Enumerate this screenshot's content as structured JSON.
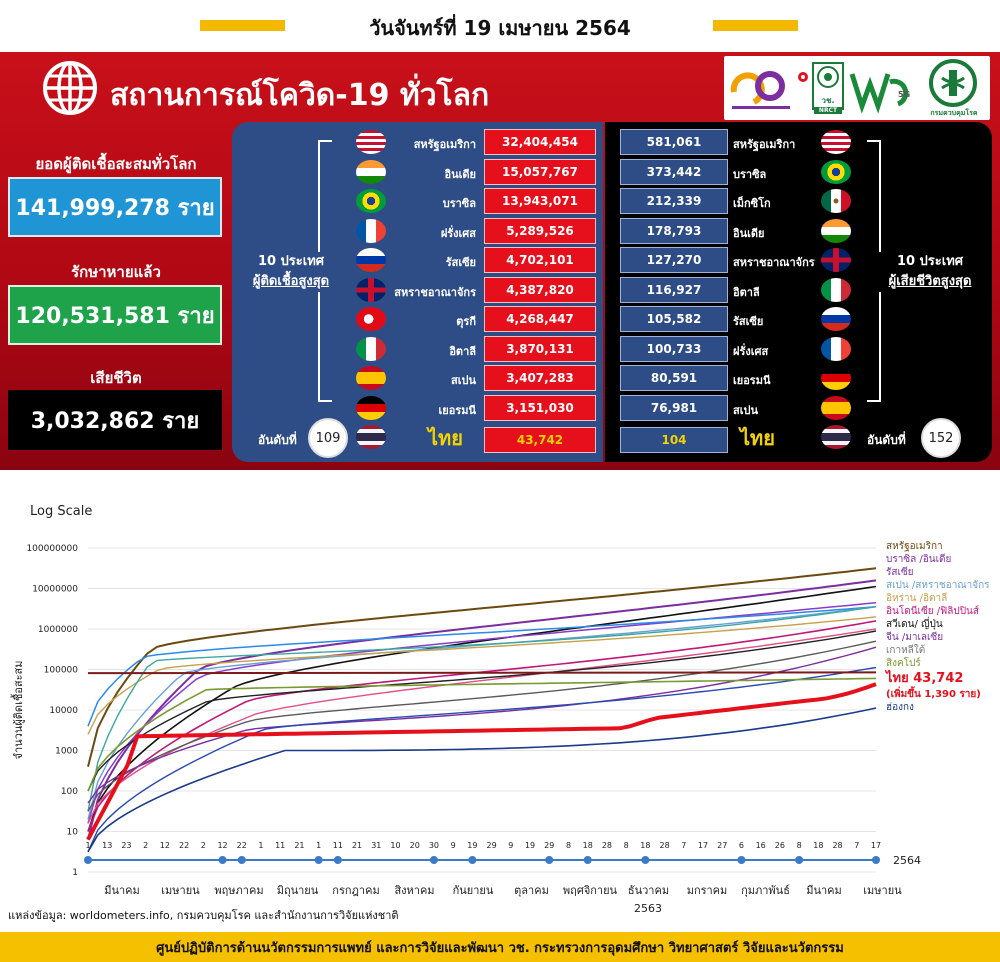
{
  "header": {
    "date": "วันจันทร์ที่ 19 เมษายน 2564"
  },
  "panel": {
    "title": "สถานการณ์โควิด-19 ทั่วโลก",
    "cases_label": "ยอดผู้ติดเชื้อสะสมทั่วโลก",
    "cases_value": "141,999,278 ราย",
    "recovered_label": "รักษาหายแล้ว",
    "recovered_value": "120,531,581 ราย",
    "deaths_label": "เสียชีวิต",
    "deaths_value": "3,032,862 ราย",
    "logo_text": {
      "wc": "วช.",
      "nrct": "NRCT",
      "g5": "5G",
      "ddc": "กรมควบคุมโรค"
    }
  },
  "top_cases": {
    "title_line1": "10 ประเทศ",
    "title_line2": "ผู้ติดเชื้อสูงสุด",
    "rows": [
      {
        "flag": "us",
        "country": "สหรัฐอเมริกา",
        "value": "32,404,454"
      },
      {
        "flag": "in",
        "country": "อินเดีย",
        "value": "15,057,767"
      },
      {
        "flag": "br",
        "country": "บราซิล",
        "value": "13,943,071"
      },
      {
        "flag": "fr",
        "country": "ฝรั่งเศส",
        "value": "5,289,526"
      },
      {
        "flag": "ru",
        "country": "รัสเซีย",
        "value": "4,702,101"
      },
      {
        "flag": "gb",
        "country": "สหราชอาณาจักร",
        "value": "4,387,820"
      },
      {
        "flag": "tr",
        "country": "ตุรกี",
        "value": "4,268,447"
      },
      {
        "flag": "it",
        "country": "อิตาลี",
        "value": "3,870,131"
      },
      {
        "flag": "es",
        "country": "สเปน",
        "value": "3,407,283"
      },
      {
        "flag": "de",
        "country": "เยอรมนี",
        "value": "3,151,030"
      }
    ],
    "rank_label": "อันดับที่",
    "thai_rank": "109",
    "thai_label": "ไทย",
    "thai_value": "43,742"
  },
  "top_deaths": {
    "title_line1": "10 ประเทศ",
    "title_line2": "ผู้เสียชีวิตสูงสุด",
    "rows": [
      {
        "flag": "us",
        "country": "สหรัฐอเมริกา",
        "value": "581,061"
      },
      {
        "flag": "br",
        "country": "บราซิล",
        "value": "373,442"
      },
      {
        "flag": "mx",
        "country": "เม็กซิโก",
        "value": "212,339"
      },
      {
        "flag": "in",
        "country": "อินเดีย",
        "value": "178,793"
      },
      {
        "flag": "gb",
        "country": "สหราชอาณาจักร",
        "value": "127,270"
      },
      {
        "flag": "it",
        "country": "อิตาลี",
        "value": "116,927"
      },
      {
        "flag": "ru",
        "country": "รัสเซีย",
        "value": "105,582"
      },
      {
        "flag": "fr",
        "country": "ฝรั่งเศส",
        "value": "100,733"
      },
      {
        "flag": "de",
        "country": "เยอรมนี",
        "value": "80,591"
      },
      {
        "flag": "es",
        "country": "สเปน",
        "value": "76,981"
      }
    ],
    "rank_label": "อันดับที่",
    "thai_rank": "152",
    "thai_label": "ไทย",
    "thai_value": "104"
  },
  "chart": {
    "scale_label": "Log Scale",
    "ylabel": "จำนวนผู้ติดเชื้อสะสม",
    "y_ticks": [
      "100000000",
      "10000000",
      "1000000",
      "100000",
      "10000",
      "1000",
      "100",
      "10",
      "1"
    ],
    "x_day_ticks": [
      "1",
      "13",
      "23",
      "2",
      "12",
      "22",
      "2",
      "12",
      "22",
      "1",
      "11",
      "21",
      "1",
      "11",
      "21",
      "31",
      "10",
      "20",
      "30",
      "9",
      "19",
      "29",
      "9",
      "19",
      "29",
      "8",
      "18",
      "28",
      "8",
      "18",
      "28",
      "7",
      "17",
      "27",
      "6",
      "16",
      "26",
      "8",
      "18",
      "28",
      "7",
      "17"
    ],
    "x_month_labels": [
      "มีนาคม",
      "เมษายน",
      "พฤษภาคม",
      "มิถุนายน",
      "กรกฎาคม",
      "สิงหาคม",
      "กันยายน",
      "ตุลาคม",
      "พฤศจิกายน",
      "ธันวาคม",
      "มกราคม",
      "กุมภาพันธ์",
      "มีนาคม",
      "เมษายน"
    ],
    "year_2563": "2563",
    "year_2564": "2564",
    "legend": [
      {
        "text": "สหรัฐอเมริกา",
        "color": "#6b4a12"
      },
      {
        "text": "บราซิล /อินเดีย",
        "color": "#7b2ea0"
      },
      {
        "text": "รัสเซีย",
        "color": "#7b2ea0"
      },
      {
        "text": "สเปน /สหราชอาณาจักร",
        "color": "#6aa0d8"
      },
      {
        "text": "อิหร่าน /อิตาลี",
        "color": "#c8a04a"
      },
      {
        "text": "อินโดนีเซีย /ฟิลิปปินส์",
        "color": "#c0187a"
      },
      {
        "text": "สวีเดน/ ญี่ปุ่น",
        "color": "#111111"
      },
      {
        "text": "จีน /มาเลเซีย",
        "color": "#7b2ea0"
      },
      {
        "text": "เกาหลีใต้",
        "color": "#777777"
      },
      {
        "text": "สิงคโปร์",
        "color": "#7a9a30"
      },
      {
        "text": "ไทย 43,742",
        "color": "#e5101c"
      },
      {
        "text": "(เพิ่มขึ้น 1,390 ราย)",
        "color": "#e5101c"
      },
      {
        "text": "ฮ่องกง",
        "color": "#1a3a8a"
      }
    ],
    "source": "แหล่งข้อมูล: worldometers.info, กรมควบคุมโรค และสำนักงานการวิจัยแห่งชาติ"
  },
  "footer": {
    "text": "ศูนย์ปฏิบัติการด้านนวัตกรรมการแพทย์ และการวิจัยและพัฒนา วช. กระทรวงการอุดมศึกษา วิทยาศาสตร์ วิจัยและนวัตกรรม"
  }
}
